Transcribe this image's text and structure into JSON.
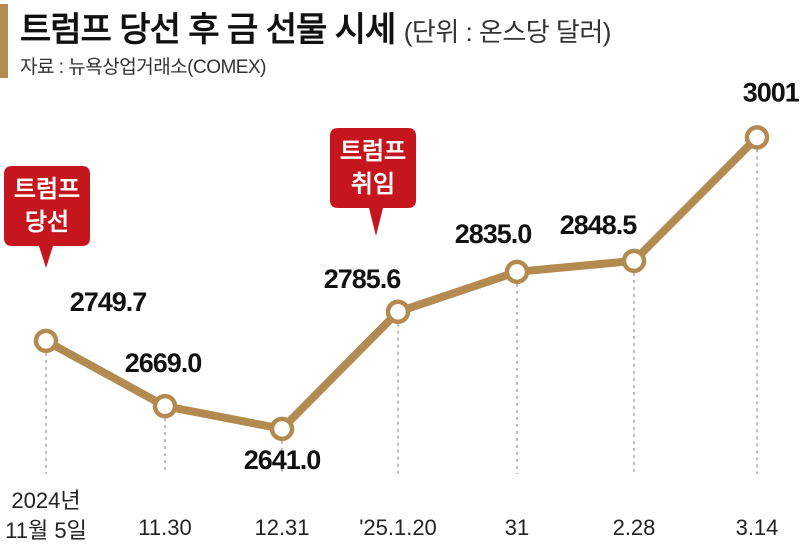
{
  "header": {
    "title": "트럼프 당선 후 금 선물 시세",
    "unit": "(단위 : 온스당 달러)",
    "source": "자료 : 뉴욕상업거래소(COMEX)"
  },
  "callouts": [
    {
      "lines": [
        "트럼프",
        "당선"
      ],
      "point_index": 0
    },
    {
      "lines": [
        "트럼프",
        "취임"
      ],
      "point_index": 3
    }
  ],
  "colors": {
    "line": "#b38a4f",
    "callout": "#c4161c",
    "accent_bar": "#b38a4f"
  },
  "chart_data": {
    "type": "line",
    "title": "트럼프 당선 후 금 선물 시세",
    "unit": "(단위 : 온스당 달러)",
    "x_labels": [
      [
        "2024년",
        "11월 5일"
      ],
      [
        "11.30"
      ],
      [
        "12.31"
      ],
      [
        "'25.1.20"
      ],
      [
        "31"
      ],
      [
        "2.28"
      ],
      [
        "3.14"
      ]
    ],
    "values": [
      2749.7,
      2669.0,
      2641.0,
      2785.6,
      2835.0,
      2848.5,
      3001.1
    ],
    "value_labels": [
      "2749.7",
      "2669.0",
      "2641.0",
      "2785.6",
      "2835.0",
      "2848.5",
      "3001.1"
    ],
    "ylim": [
      2600,
      3030
    ],
    "grid": false
  }
}
